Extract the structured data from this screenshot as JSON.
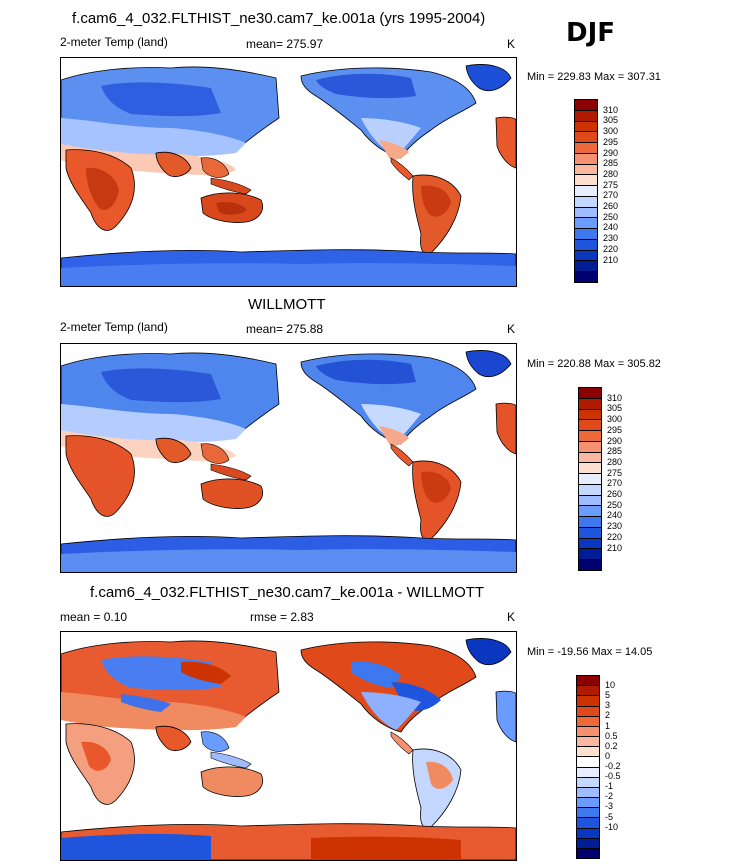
{
  "season": "DJF",
  "panels": [
    {
      "title": "f.cam6_4_032.FLTHIST_ne30.cam7_ke.001a (yrs 1995-2004)",
      "left_label": "2-meter Temp (land)",
      "center_label": "mean= 275.97",
      "units": "K",
      "minmax": "Min = 229.83 Max = 307.31",
      "colorbar": {
        "colors": [
          "#8b0000",
          "#b01a00",
          "#cc3300",
          "#e04a1a",
          "#ee6a3a",
          "#f59070",
          "#fbb8a0",
          "#fde0d0",
          "#e6eeff",
          "#c4d8ff",
          "#9ebcff",
          "#6a9bff",
          "#3d78ef",
          "#1f55dd",
          "#0a36c0",
          "#001d96",
          "#00006e"
        ],
        "tick_labels": [
          "310",
          "305",
          "300",
          "295",
          "290",
          "285",
          "280",
          "275",
          "270",
          "260",
          "250",
          "240",
          "230",
          "220",
          "210"
        ]
      }
    },
    {
      "title": "WILLMOTT",
      "left_label": "2-meter Temp (land)",
      "center_label": "mean= 275.88",
      "units": "K",
      "minmax": "Min = 220.88 Max = 305.82",
      "colorbar": {
        "colors": [
          "#8b0000",
          "#b01a00",
          "#cc3300",
          "#e04a1a",
          "#ee6a3a",
          "#f59070",
          "#fbb8a0",
          "#fde0d0",
          "#e6eeff",
          "#c4d8ff",
          "#9ebcff",
          "#6a9bff",
          "#3d78ef",
          "#1f55dd",
          "#0a36c0",
          "#001d96",
          "#00006e"
        ],
        "tick_labels": [
          "310",
          "305",
          "300",
          "295",
          "290",
          "285",
          "280",
          "275",
          "270",
          "260",
          "250",
          "240",
          "230",
          "220",
          "210"
        ]
      }
    },
    {
      "title": "f.cam6_4_032.FLTHIST_ne30.cam7_ke.001a - WILLMOTT",
      "left_label": "mean =   0.10",
      "center_label": "rmse =   2.83",
      "units": "K",
      "minmax": "Min = -19.56 Max =  14.05",
      "colorbar": {
        "colors": [
          "#8b0000",
          "#b01a00",
          "#cc3300",
          "#e04a1a",
          "#ee6a3a",
          "#f59070",
          "#fbb8a0",
          "#fde0d0",
          "#ffffff",
          "#e6eeff",
          "#c4d8ff",
          "#9ebcff",
          "#6a9bff",
          "#3d78ef",
          "#1f55dd",
          "#0a36c0",
          "#001d96",
          "#00006e"
        ],
        "tick_labels": [
          "10",
          "5",
          "3",
          "2",
          "1",
          "0.5",
          "0.2",
          "0",
          "-0.2",
          "-0.5",
          "-1",
          "-2",
          "-3",
          "-5",
          "-10"
        ]
      }
    }
  ]
}
